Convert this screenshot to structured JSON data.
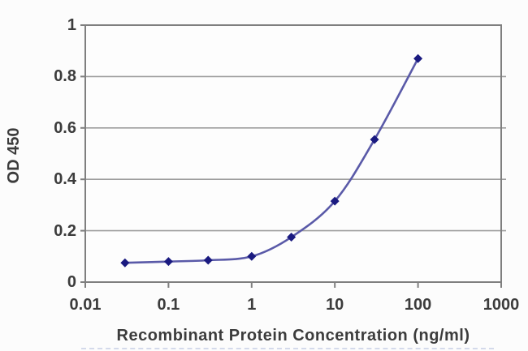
{
  "page": {
    "background": "#fcfcfc"
  },
  "chart_data": {
    "type": "line",
    "x_scale": "log",
    "title": "",
    "xlabel": "Recombinant Protein Concentration (ng/ml)",
    "ylabel": "OD 450",
    "x": [
      0.03,
      0.1,
      0.3,
      1,
      3,
      10,
      30,
      100
    ],
    "y": [
      0.075,
      0.08,
      0.085,
      0.1,
      0.175,
      0.315,
      0.555,
      0.87
    ],
    "xlim": [
      0.01,
      1000
    ],
    "ylim": [
      0,
      1
    ],
    "x_tick_values": [
      0.01,
      0.1,
      1,
      10,
      100,
      1000
    ],
    "x_tick_labels": [
      "0.01",
      "0.1",
      "1",
      "10",
      "100",
      "1000"
    ],
    "y_tick_values": [
      1,
      0.8,
      0.6,
      0.4,
      0.2,
      0
    ],
    "y_tick_labels": [
      "1",
      "0.8",
      "0.6",
      "0.4",
      "0.2",
      "0"
    ],
    "grid": "horizontal-only",
    "legend": "none",
    "marker": "diamond",
    "line_style": "smooth",
    "colors": {
      "line": "#5a5aa8",
      "marker": "#1a1a80",
      "grid": "#9e9e9e",
      "axis": "#7f7f7f",
      "text": "#3c3c3c",
      "background": "#fcfcfc",
      "plot_background": "#fdfdfd"
    }
  }
}
